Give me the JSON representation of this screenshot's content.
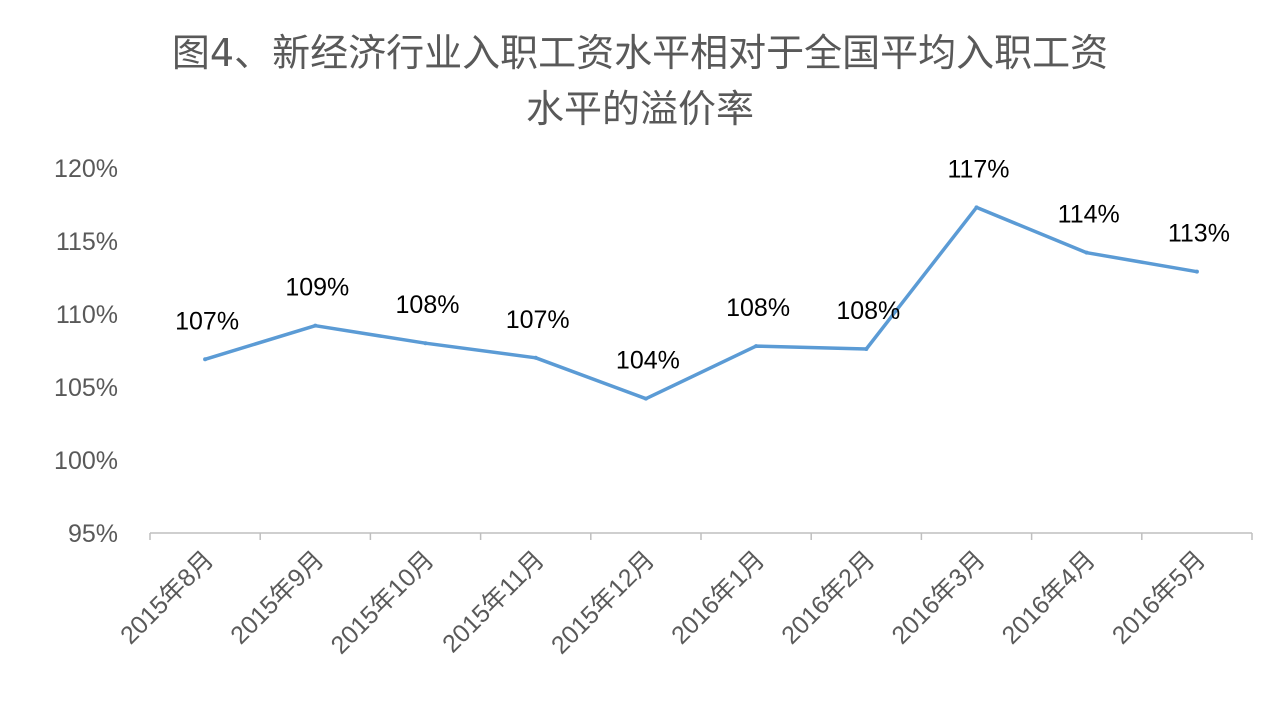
{
  "chart_data": {
    "type": "line",
    "title": "图4、新经济行业入职工资水平相对于全国平均入职工资水平的溢价率",
    "title_lines": [
      "图4、新经济行业入职工资水平相对于全国平均入职工资",
      "水平的溢价率"
    ],
    "categories": [
      "2015年8月",
      "2015年9月",
      "2015年10月",
      "2015年11月",
      "2015年12月",
      "2016年1月",
      "2016年2月",
      "2016年3月",
      "2016年4月",
      "2016年5月"
    ],
    "series": [
      {
        "values": [
          106.9,
          109.2,
          108.0,
          107.0,
          104.2,
          107.8,
          107.6,
          117.3,
          114.2,
          112.9
        ],
        "labels": [
          "107%",
          "109%",
          "108%",
          "107%",
          "104%",
          "108%",
          "108%",
          "117%",
          "114%",
          "113%"
        ],
        "color": "#5B9BD5"
      }
    ],
    "y_ticks": [
      95,
      100,
      105,
      110,
      115,
      120
    ],
    "y_tick_labels": [
      "95%",
      "100%",
      "105%",
      "110%",
      "115%",
      "120%"
    ],
    "ylim": [
      95,
      120
    ],
    "xlabel": "",
    "ylabel": "",
    "grid": false,
    "legend": "none",
    "axis_color": "#BFBFBF",
    "text_color": "#595959"
  }
}
